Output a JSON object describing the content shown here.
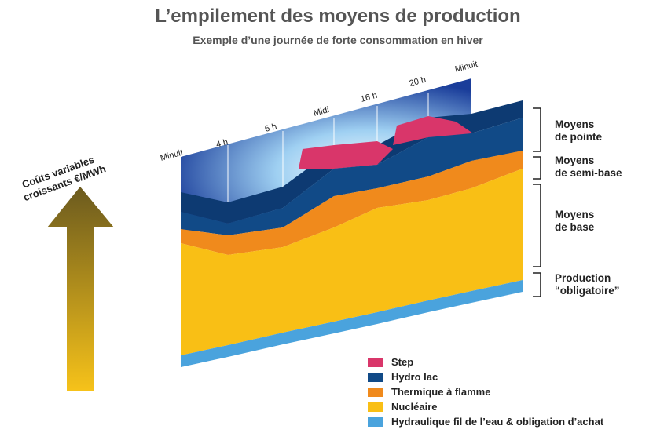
{
  "header": {
    "title": "L’empilement des moyens de production",
    "subtitle": "Exemple d’une journée de forte consommation en hiver"
  },
  "time_labels": [
    "Minuit",
    "4 h",
    "6 h",
    "Midi",
    "16 h",
    "20 h",
    "Minuit"
  ],
  "arrow_label": [
    "Coûts variables",
    "croissants €/MWh"
  ],
  "groups": [
    {
      "lines": [
        "Moyens",
        "de pointe"
      ]
    },
    {
      "lines": [
        "Moyens",
        "de semi-base"
      ]
    },
    {
      "lines": [
        "Moyens",
        "de base"
      ]
    },
    {
      "lines": [
        "Production",
        "“obligatoire”"
      ]
    }
  ],
  "legend": [
    "Step",
    "Hydro lac",
    "Thermique à flamme",
    "Nucléaire",
    "Hydraulique fil de l’eau  & obligation d’achat"
  ]
}
